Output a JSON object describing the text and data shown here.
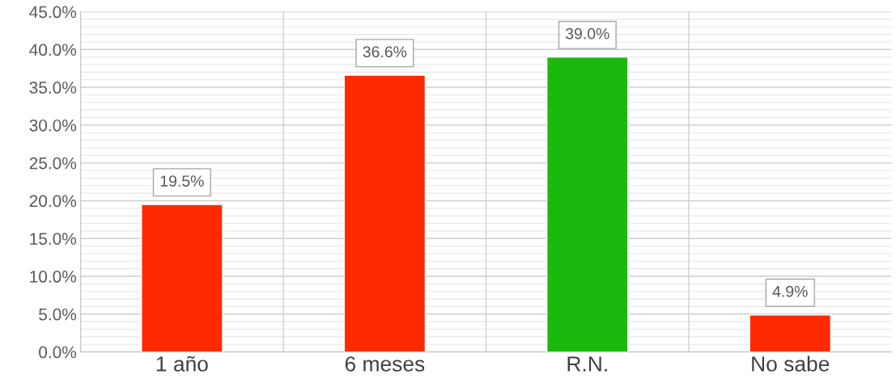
{
  "chart_data": {
    "type": "bar",
    "categories": [
      "1 año",
      "6 meses",
      "R.N.",
      "No sabe"
    ],
    "values": [
      19.5,
      36.6,
      39.0,
      4.9
    ],
    "colors": [
      "#ff2a00",
      "#ff2a00",
      "#1bb90f",
      "#ff2a00"
    ],
    "value_labels": [
      "19.5%",
      "36.6%",
      "39.0%",
      "4.9%"
    ],
    "ylim": [
      0,
      45
    ],
    "yticks": [
      {
        "value": 0,
        "label": "0.0%"
      },
      {
        "value": 5,
        "label": "5.0%"
      },
      {
        "value": 10,
        "label": "10.0%"
      },
      {
        "value": 15,
        "label": "15.0%"
      },
      {
        "value": 20,
        "label": "20.0%"
      },
      {
        "value": 25,
        "label": "25.0%"
      },
      {
        "value": 30,
        "label": "30.0%"
      },
      {
        "value": 35,
        "label": "35.0%"
      },
      {
        "value": 40,
        "label": "40.0%"
      },
      {
        "value": 45,
        "label": "45.0%"
      }
    ],
    "grid": true,
    "legend": false
  }
}
